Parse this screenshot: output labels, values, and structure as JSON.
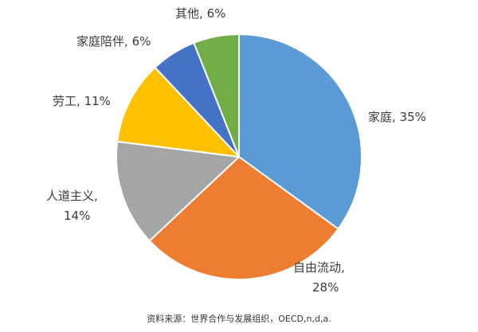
{
  "chart_data": {
    "type": "pie",
    "categories": [
      "家庭",
      "自由流动",
      "人道主义",
      "劳工",
      "家庭陪伴",
      "其他"
    ],
    "values": [
      35,
      28,
      14,
      11,
      6,
      6
    ],
    "data_labels": [
      {
        "name": "家庭",
        "value": "35%"
      },
      {
        "name": "自由流动,",
        "value": "28%"
      },
      {
        "name": "人道主义,",
        "value": "14%"
      },
      {
        "name": "劳工",
        "value": "11%"
      },
      {
        "name": "家庭陪伴",
        "value": "6%"
      },
      {
        "name": "其他",
        "value": "6%"
      }
    ],
    "colors": [
      "#5b9bd5",
      "#ed7d31",
      "#a5a5a5",
      "#ffc000",
      "#4472c4",
      "#70ad47"
    ],
    "title": "",
    "start_angle_deg": 0,
    "direction": "clockwise",
    "legend": "none"
  },
  "source_note": "资料来源：世界合作与发展组织，OECD,n,d,a."
}
